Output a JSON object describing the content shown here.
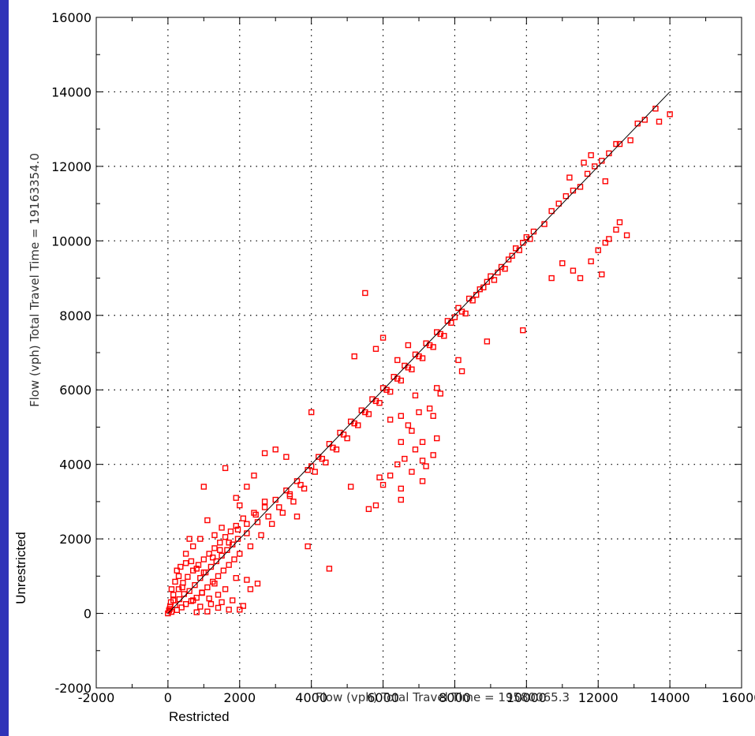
{
  "colors": {
    "frame": "#2f33b8",
    "points": "#ff0000",
    "grid": "#000000",
    "line": "#000000"
  },
  "labels": {
    "unrestricted": "Unrestricted",
    "restricted": "Restricted"
  },
  "chart_data": {
    "type": "scatter",
    "title": "",
    "xlabel": "Flow (vph) Total Travel Time = 19580065.3",
    "ylabel": "Flow (vph) Total Travel Time = 19163354.0",
    "xlim": [
      -2000,
      16000
    ],
    "ylim": [
      -2000,
      16000
    ],
    "xticks": [
      -2000,
      0,
      2000,
      4000,
      6000,
      8000,
      10000,
      12000,
      14000,
      16000
    ],
    "yticks": [
      -2000,
      0,
      2000,
      4000,
      6000,
      8000,
      10000,
      12000,
      14000,
      16000
    ],
    "grid": true,
    "reference_line": {
      "x": [
        0,
        14000
      ],
      "y": [
        0,
        14000
      ]
    },
    "series": [
      {
        "marker": "open-square",
        "points": [
          [
            0,
            0
          ],
          [
            50,
            120
          ],
          [
            80,
            300
          ],
          [
            100,
            40
          ],
          [
            150,
            500
          ],
          [
            200,
            220
          ],
          [
            250,
            90
          ],
          [
            300,
            650
          ],
          [
            320,
            380
          ],
          [
            380,
            160
          ],
          [
            420,
            820
          ],
          [
            450,
            520
          ],
          [
            500,
            250
          ],
          [
            550,
            980
          ],
          [
            600,
            600
          ],
          [
            650,
            330
          ],
          [
            700,
            1150
          ],
          [
            750,
            760
          ],
          [
            800,
            420
          ],
          [
            850,
            1300
          ],
          [
            900,
            950
          ],
          [
            950,
            560
          ],
          [
            1000,
            1450
          ],
          [
            1050,
            1100
          ],
          [
            1100,
            700
          ],
          [
            1150,
            1600
          ],
          [
            1200,
            1250
          ],
          [
            1250,
            850
          ],
          [
            1300,
            1750
          ],
          [
            1350,
            1400
          ],
          [
            1400,
            1000
          ],
          [
            1450,
            1900
          ],
          [
            1500,
            1550
          ],
          [
            1550,
            1150
          ],
          [
            1600,
            2050
          ],
          [
            1650,
            1700
          ],
          [
            1700,
            1300
          ],
          [
            1750,
            2200
          ],
          [
            1800,
            1850
          ],
          [
            1850,
            1450
          ],
          [
            1900,
            2350
          ],
          [
            1950,
            2000
          ],
          [
            2000,
            1600
          ],
          [
            2100,
            2550
          ],
          [
            2200,
            2150
          ],
          [
            2300,
            1800
          ],
          [
            2400,
            2700
          ],
          [
            2500,
            2450
          ],
          [
            2600,
            2100
          ],
          [
            2700,
            2850
          ],
          [
            2800,
            2600
          ],
          [
            2900,
            2400
          ],
          [
            3000,
            3050
          ],
          [
            3100,
            2850
          ],
          [
            3200,
            2700
          ],
          [
            3300,
            3300
          ],
          [
            3400,
            3150
          ],
          [
            3500,
            3000
          ],
          [
            3600,
            3550
          ],
          [
            3700,
            3450
          ],
          [
            3800,
            3350
          ],
          [
            3900,
            3850
          ],
          [
            4000,
            3950
          ],
          [
            4100,
            3800
          ],
          [
            4200,
            4200
          ],
          [
            4300,
            4150
          ],
          [
            4400,
            4050
          ],
          [
            4500,
            4550
          ],
          [
            4600,
            4450
          ],
          [
            4700,
            4400
          ],
          [
            4800,
            4850
          ],
          [
            4900,
            4800
          ],
          [
            5000,
            4700
          ],
          [
            5100,
            5150
          ],
          [
            5200,
            5100
          ],
          [
            5300,
            5050
          ],
          [
            5400,
            5450
          ],
          [
            5500,
            5400
          ],
          [
            5600,
            5350
          ],
          [
            5700,
            5750
          ],
          [
            5800,
            5700
          ],
          [
            5900,
            5650
          ],
          [
            6000,
            6050
          ],
          [
            6100,
            6000
          ],
          [
            6200,
            5950
          ],
          [
            6300,
            6350
          ],
          [
            6400,
            6300
          ],
          [
            6500,
            6250
          ],
          [
            6600,
            6650
          ],
          [
            6700,
            6600
          ],
          [
            6800,
            6550
          ],
          [
            6900,
            6950
          ],
          [
            7000,
            6900
          ],
          [
            7100,
            6850
          ],
          [
            7200,
            7250
          ],
          [
            7300,
            7200
          ],
          [
            7400,
            7150
          ],
          [
            7500,
            7550
          ],
          [
            7600,
            7500
          ],
          [
            7700,
            7450
          ],
          [
            7800,
            7850
          ],
          [
            7900,
            7800
          ],
          [
            8000,
            7950
          ],
          [
            8100,
            8200
          ],
          [
            8200,
            8100
          ],
          [
            8300,
            8050
          ],
          [
            8400,
            8450
          ],
          [
            8500,
            8400
          ],
          [
            8600,
            8550
          ],
          [
            8700,
            8700
          ],
          [
            8800,
            8750
          ],
          [
            8900,
            8900
          ],
          [
            9000,
            9050
          ],
          [
            9100,
            8950
          ],
          [
            9200,
            9150
          ],
          [
            9300,
            9300
          ],
          [
            9400,
            9250
          ],
          [
            9500,
            9500
          ],
          [
            9600,
            9600
          ],
          [
            9700,
            9800
          ],
          [
            9800,
            9750
          ],
          [
            9900,
            9950
          ],
          [
            10000,
            10100
          ],
          [
            10100,
            10050
          ],
          [
            10200,
            10250
          ],
          [
            10500,
            10450
          ],
          [
            10700,
            10800
          ],
          [
            10900,
            11000
          ],
          [
            11100,
            11200
          ],
          [
            11300,
            11350
          ],
          [
            11500,
            11450
          ],
          [
            11700,
            11800
          ],
          [
            11900,
            12000
          ],
          [
            12100,
            12150
          ],
          [
            12300,
            12350
          ],
          [
            12600,
            12600
          ],
          [
            12900,
            12700
          ],
          [
            13100,
            13150
          ],
          [
            13300,
            13250
          ],
          [
            13600,
            13550
          ],
          [
            13700,
            13200
          ],
          [
            14000,
            13400
          ],
          [
            11200,
            11700
          ],
          [
            11800,
            12300
          ],
          [
            12500,
            12600
          ],
          [
            12200,
            11600
          ],
          [
            11600,
            12100
          ],
          [
            10700,
            9000
          ],
          [
            11000,
            9400
          ],
          [
            11300,
            9200
          ],
          [
            11500,
            9000
          ],
          [
            11800,
            9450
          ],
          [
            12100,
            9100
          ],
          [
            12300,
            10050
          ],
          [
            12500,
            10300
          ],
          [
            12600,
            10500
          ],
          [
            12800,
            10150
          ],
          [
            12000,
            9750
          ],
          [
            12200,
            9950
          ],
          [
            5500,
            8600
          ],
          [
            6000,
            7400
          ],
          [
            5800,
            7100
          ],
          [
            5200,
            6900
          ],
          [
            6700,
            7200
          ],
          [
            6400,
            6800
          ],
          [
            8900,
            7300
          ],
          [
            9900,
            7600
          ],
          [
            8100,
            6800
          ],
          [
            8200,
            6500
          ],
          [
            7500,
            6050
          ],
          [
            7600,
            5900
          ],
          [
            6900,
            5850
          ],
          [
            7300,
            5500
          ],
          [
            7400,
            5300
          ],
          [
            7000,
            5400
          ],
          [
            6700,
            5050
          ],
          [
            6500,
            5300
          ],
          [
            6200,
            5200
          ],
          [
            6800,
            4900
          ],
          [
            7100,
            4600
          ],
          [
            7500,
            4700
          ],
          [
            6500,
            4600
          ],
          [
            6900,
            4400
          ],
          [
            7400,
            4250
          ],
          [
            6600,
            4150
          ],
          [
            7100,
            4100
          ],
          [
            6400,
            4000
          ],
          [
            6800,
            3800
          ],
          [
            7200,
            3950
          ],
          [
            5900,
            3650
          ],
          [
            6200,
            3700
          ],
          [
            6000,
            3450
          ],
          [
            6500,
            3350
          ],
          [
            7100,
            3550
          ],
          [
            6500,
            3050
          ],
          [
            5800,
            2900
          ],
          [
            5600,
            2800
          ],
          [
            5100,
            3400
          ],
          [
            4500,
            1200
          ],
          [
            4000,
            5400
          ],
          [
            3300,
            4200
          ],
          [
            3000,
            4400
          ],
          [
            2700,
            4300
          ],
          [
            2400,
            3700
          ],
          [
            2200,
            3400
          ],
          [
            1900,
            3100
          ],
          [
            1600,
            3900
          ],
          [
            2000,
            2900
          ],
          [
            1500,
            2300
          ],
          [
            1300,
            2100
          ],
          [
            1100,
            2500
          ],
          [
            1000,
            3400
          ],
          [
            900,
            2000
          ],
          [
            700,
            1800
          ],
          [
            600,
            2000
          ],
          [
            500,
            1600
          ],
          [
            3600,
            2600
          ],
          [
            3900,
            1800
          ],
          [
            3400,
            3200
          ],
          [
            2100,
            200
          ],
          [
            2000,
            100
          ],
          [
            1800,
            350
          ],
          [
            1700,
            100
          ],
          [
            1500,
            300
          ],
          [
            1400,
            150
          ],
          [
            1200,
            250
          ],
          [
            1100,
            50
          ],
          [
            900,
            180
          ],
          [
            800,
            30
          ],
          [
            2500,
            800
          ],
          [
            2300,
            650
          ],
          [
            2200,
            900
          ],
          [
            1900,
            950
          ],
          [
            1600,
            650
          ],
          [
            1400,
            500
          ],
          [
            1300,
            800
          ],
          [
            1150,
            400
          ],
          [
            950,
            550
          ],
          [
            700,
            350
          ],
          [
            400,
            700
          ],
          [
            300,
            1000
          ],
          [
            200,
            850
          ],
          [
            150,
            350
          ],
          [
            100,
            650
          ],
          [
            60,
            180
          ],
          [
            30,
            80
          ],
          [
            250,
            1150
          ],
          [
            350,
            1250
          ],
          [
            500,
            1350
          ],
          [
            650,
            1400
          ],
          [
            800,
            1200
          ],
          [
            1000,
            1100
          ],
          [
            1250,
            1500
          ],
          [
            1450,
            1700
          ],
          [
            1700,
            1900
          ],
          [
            1950,
            2250
          ],
          [
            2200,
            2400
          ],
          [
            2450,
            2650
          ],
          [
            2700,
            3000
          ]
        ]
      }
    ]
  }
}
